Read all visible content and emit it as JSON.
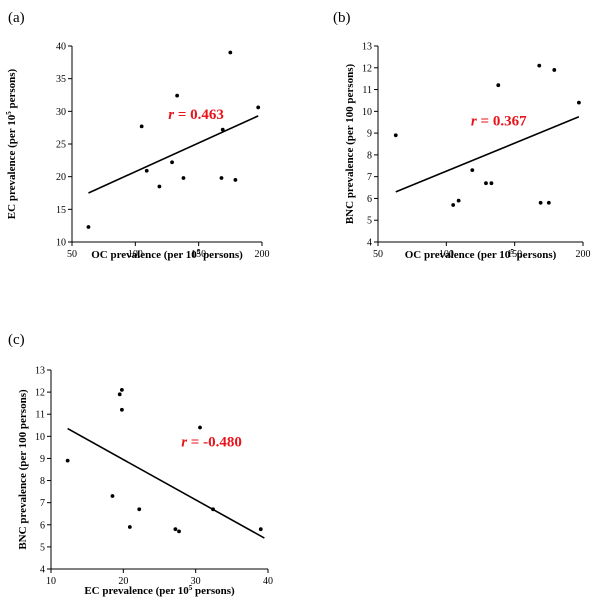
{
  "chart_data": [
    {
      "type": "scatter",
      "panel": "(a)",
      "xlabel_pre": "OC prevalence (per 10",
      "xlabel_sup": "5",
      "xlabel_post": " persons)",
      "ylabel_pre": "EC prevalence (per 10",
      "ylabel_sup": "5",
      "ylabel_post": " persons)",
      "xlim": [
        50,
        200
      ],
      "ylim": [
        10,
        40
      ],
      "xticks": [
        50,
        100,
        150,
        200
      ],
      "yticks": [
        10,
        15,
        20,
        25,
        30,
        35,
        40
      ],
      "points": [
        {
          "x": 63,
          "y": 12.3
        },
        {
          "x": 105,
          "y": 27.7
        },
        {
          "x": 109,
          "y": 20.9
        },
        {
          "x": 119,
          "y": 18.5
        },
        {
          "x": 129,
          "y": 22.2
        },
        {
          "x": 133,
          "y": 32.4
        },
        {
          "x": 138,
          "y": 19.8
        },
        {
          "x": 168,
          "y": 19.8
        },
        {
          "x": 169,
          "y": 27.2
        },
        {
          "x": 175,
          "y": 39.0
        },
        {
          "x": 179,
          "y": 19.5
        },
        {
          "x": 197,
          "y": 30.6
        }
      ],
      "trendline": {
        "x0": 63,
        "y0": 17.5,
        "x1": 197,
        "y1": 29.3
      },
      "annotation": {
        "r_italic": "r",
        "rest": " = 0.463",
        "x": 126,
        "y": 28.8
      }
    },
    {
      "type": "scatter",
      "panel": "(b)",
      "xlabel_pre": "OC prevalence (per 10",
      "xlabel_sup": "5",
      "xlabel_post": " persons)",
      "ylabel_pre": "BNC prevalence (per 100 persons)",
      "ylabel_sup": "",
      "ylabel_post": "",
      "xlim": [
        50,
        200
      ],
      "ylim": [
        4,
        13
      ],
      "xticks": [
        50,
        100,
        150,
        200
      ],
      "yticks": [
        4,
        5,
        6,
        7,
        8,
        9,
        10,
        11,
        12,
        13
      ],
      "points": [
        {
          "x": 63,
          "y": 8.9
        },
        {
          "x": 105,
          "y": 5.7
        },
        {
          "x": 109,
          "y": 5.9
        },
        {
          "x": 119,
          "y": 7.3
        },
        {
          "x": 129,
          "y": 6.7
        },
        {
          "x": 133,
          "y": 6.7
        },
        {
          "x": 138,
          "y": 11.2
        },
        {
          "x": 168,
          "y": 12.1
        },
        {
          "x": 169,
          "y": 5.8
        },
        {
          "x": 175,
          "y": 5.8
        },
        {
          "x": 179,
          "y": 11.9
        },
        {
          "x": 197,
          "y": 10.4
        }
      ],
      "trendline": {
        "x0": 63,
        "y0": 6.3,
        "x1": 197,
        "y1": 9.75
      },
      "annotation": {
        "r_italic": "r",
        "rest": " = 0.367",
        "x": 118,
        "y": 9.35
      }
    },
    {
      "type": "scatter",
      "panel": "(c)",
      "xlabel_pre": "EC prevalence (per 10",
      "xlabel_sup": "5",
      "xlabel_post": " persons)",
      "ylabel_pre": "BNC prevalence (per 100 persons)",
      "ylabel_sup": "",
      "ylabel_post": "",
      "xlim": [
        10,
        40
      ],
      "ylim": [
        4,
        13
      ],
      "xticks": [
        10,
        20,
        30,
        40
      ],
      "yticks": [
        4,
        5,
        6,
        7,
        8,
        9,
        10,
        11,
        12,
        13
      ],
      "points": [
        {
          "x": 12.3,
          "y": 8.9
        },
        {
          "x": 18.5,
          "y": 7.3
        },
        {
          "x": 19.5,
          "y": 11.9
        },
        {
          "x": 19.8,
          "y": 12.1
        },
        {
          "x": 19.8,
          "y": 11.2
        },
        {
          "x": 20.9,
          "y": 5.9
        },
        {
          "x": 22.2,
          "y": 6.7
        },
        {
          "x": 27.2,
          "y": 5.8
        },
        {
          "x": 27.7,
          "y": 5.7
        },
        {
          "x": 30.6,
          "y": 10.4
        },
        {
          "x": 32.4,
          "y": 6.7
        },
        {
          "x": 39.0,
          "y": 5.8
        }
      ],
      "trendline": {
        "x0": 12.3,
        "y0": 10.35,
        "x1": 39.5,
        "y1": 5.4
      },
      "annotation": {
        "r_italic": "r",
        "rest": " = -0.480",
        "x": 28,
        "y": 9.55
      }
    }
  ]
}
